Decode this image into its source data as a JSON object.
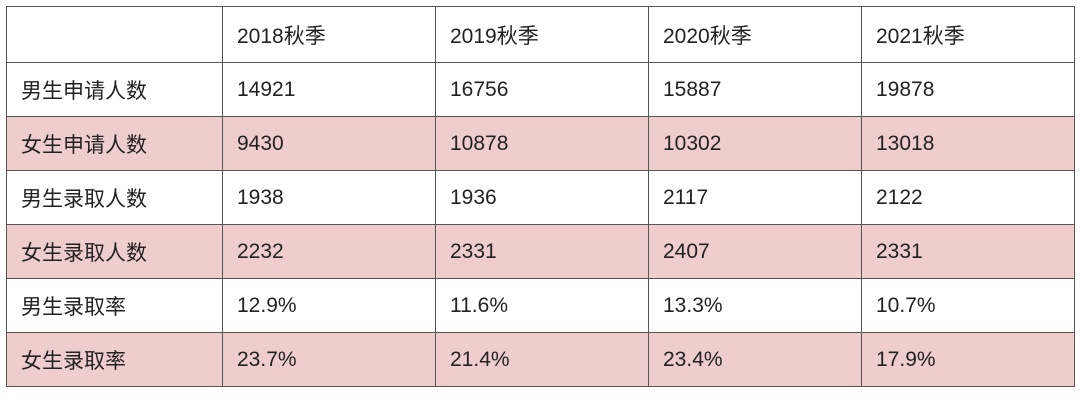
{
  "table": {
    "columns": [
      "2018秋季",
      "2019秋季",
      "2020秋季",
      "2021秋季"
    ],
    "rows": [
      {
        "label": "男生申请人数",
        "cells": [
          "14921",
          "16756",
          "15887",
          "19878"
        ]
      },
      {
        "label": "女生申请人数",
        "cells": [
          "9430",
          "10878",
          "10302",
          "13018"
        ]
      },
      {
        "label": "男生录取人数",
        "cells": [
          "1938",
          "1936",
          "2117",
          "2122"
        ]
      },
      {
        "label": "女生录取人数",
        "cells": [
          "2232",
          "2331",
          "2407",
          "2331"
        ]
      },
      {
        "label": "男生录取率",
        "cells": [
          "12.9%",
          "11.6%",
          "13.3%",
          "10.7%"
        ]
      },
      {
        "label": "女生录取率",
        "cells": [
          "23.7%",
          "21.4%",
          "23.4%",
          "17.9%"
        ]
      }
    ]
  }
}
